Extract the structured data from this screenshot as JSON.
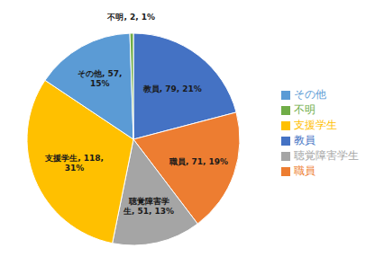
{
  "chart_data": {
    "type": "pie",
    "categories": [
      "教員",
      "職員",
      "聴覚障害学生",
      "支援学生",
      "その他",
      "不明"
    ],
    "values": [
      79,
      71,
      51,
      118,
      57,
      2
    ],
    "value_labels": [
      "教員, 79, 21%",
      "職員, 71, 19%",
      "聴覚障害学\n生, 51, 13%",
      "支援学生, 118,\n31%",
      "その他, 57,\n15%",
      "不明, 2, 1%"
    ],
    "colors": [
      "#4472C4",
      "#ED7D31",
      "#A5A5A5",
      "#FFC000",
      "#5B9BD5",
      "#70AD47"
    ],
    "data_labels": true,
    "legend": "right"
  }
}
